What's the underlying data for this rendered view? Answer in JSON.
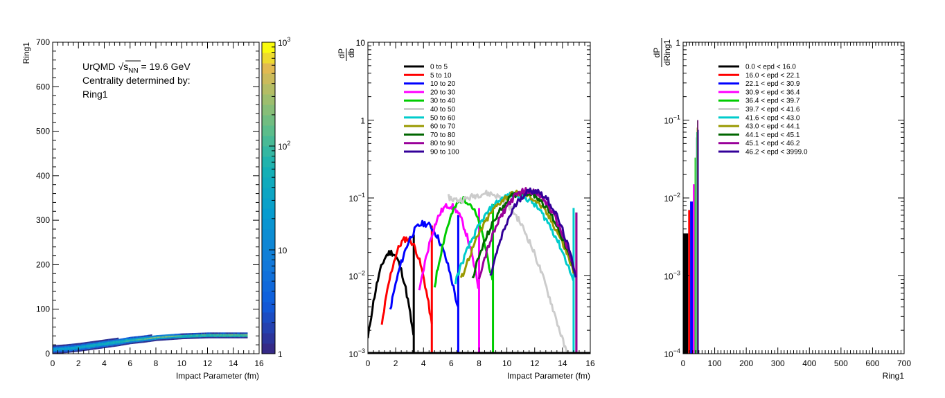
{
  "chart_data": [
    {
      "id": "panel1",
      "type": "heatmap",
      "ylabel": "Ring1",
      "xlabel": "Impact Parameter (fm)",
      "xlim": [
        0,
        16
      ],
      "ylim": [
        0,
        700
      ],
      "xticks": [
        "0",
        "2",
        "4",
        "6",
        "8",
        "10",
        "12",
        "14",
        "16"
      ],
      "yticks": [
        "0",
        "100",
        "200",
        "300",
        "400",
        "500",
        "600",
        "700"
      ],
      "annotation": {
        "line1_prefix": "UrQMD",
        "sqrt": "√",
        "s": "s",
        "sub": "NN",
        "line1_suffix": " = 19.6 GeV",
        "line2": "Centrality determined by:",
        "line3": "Ring1"
      },
      "colorbar": {
        "log": true,
        "range": [
          1,
          1000
        ],
        "labels": [
          "1",
          "10",
          "10",
          "10"
        ],
        "sups": [
          "",
          "",
          "2",
          "3"
        ],
        "label_values": [
          1,
          10,
          100,
          1000
        ]
      },
      "band": {
        "b": [
          0,
          1,
          2,
          3,
          4,
          5,
          6,
          7,
          8,
          9,
          10,
          11,
          12,
          13,
          14,
          15
        ],
        "mean": [
          8,
          10,
          13,
          17,
          21,
          25,
          29,
          32,
          35,
          37,
          38,
          39,
          40,
          40,
          40,
          40
        ],
        "halfwidth": [
          8,
          8,
          8,
          8,
          8,
          8,
          7,
          7,
          6,
          6,
          5,
          5,
          5,
          5,
          5,
          5
        ]
      }
    },
    {
      "id": "panel2",
      "type": "line",
      "ylabel_num": "dP",
      "ylabel_den": "db",
      "xlabel": "Impact Parameter (fm)",
      "xlim": [
        0,
        16
      ],
      "ylim": [
        0.001,
        10
      ],
      "log_y": true,
      "xticks": [
        "0",
        "2",
        "4",
        "6",
        "8",
        "10",
        "12",
        "14",
        "16"
      ],
      "yticks": [
        {
          "base": "10",
          "sup": "−3",
          "value": 0.001
        },
        {
          "base": "10",
          "sup": "−2",
          "value": 0.01
        },
        {
          "base": "10",
          "sup": "−1",
          "value": 0.1
        },
        {
          "base": "1",
          "sup": "",
          "value": 1
        },
        {
          "base": "10",
          "sup": "",
          "value": 10
        }
      ],
      "legend_position": "top-left",
      "series": [
        {
          "name": "0 to 5",
          "color": "#000000",
          "b_range": [
            0,
            3.3
          ],
          "peak": 0.02
        },
        {
          "name": "5 to 10",
          "color": "#ff0000",
          "b_range": [
            1.0,
            4.6
          ],
          "peak": 0.03
        },
        {
          "name": "10 to 20",
          "color": "#0000ff",
          "b_range": [
            1.6,
            6.5
          ],
          "peak": 0.047
        },
        {
          "name": "20 to 30",
          "color": "#ff00ff",
          "b_range": [
            3.7,
            8.0
          ],
          "peak": 0.08
        },
        {
          "name": "30 to 40",
          "color": "#00cc00",
          "b_range": [
            4.8,
            9.0
          ],
          "peak": 0.095
        },
        {
          "name": "40 to 50",
          "color": "#cccccc",
          "b_range": [
            5.8,
            15.0
          ],
          "peak": 0.1
        },
        {
          "name": "50 to 60",
          "color": "#00cccc",
          "b_range": [
            6.3,
            14.8
          ],
          "peak": 0.11
        },
        {
          "name": "60 to 70",
          "color": "#999900",
          "b_range": [
            6.7,
            15.0
          ],
          "peak": 0.115
        },
        {
          "name": "70 to 80",
          "color": "#006600",
          "b_range": [
            7.5,
            15.0
          ],
          "peak": 0.12
        },
        {
          "name": "80 to 90",
          "color": "#990099",
          "b_range": [
            8.0,
            15.0
          ],
          "peak": 0.125
        },
        {
          "name": "90 to 100",
          "color": "#330099",
          "b_range": [
            8.8,
            15.0
          ],
          "peak": 0.125
        }
      ]
    },
    {
      "id": "panel3",
      "type": "line",
      "ylabel_num": "dP",
      "ylabel_den": "dRing1",
      "xlabel": "Ring1",
      "xlim": [
        0,
        700
      ],
      "ylim": [
        0.0001,
        1
      ],
      "log_y": true,
      "xticks": [
        "0",
        "100",
        "200",
        "300",
        "400",
        "500",
        "600",
        "700"
      ],
      "yticks": [
        {
          "base": "10",
          "sup": "−4",
          "value": 0.0001
        },
        {
          "base": "10",
          "sup": "−3",
          "value": 0.001
        },
        {
          "base": "10",
          "sup": "−2",
          "value": 0.01
        },
        {
          "base": "10",
          "sup": "−1",
          "value": 0.1
        },
        {
          "base": "1",
          "sup": "",
          "value": 1
        }
      ],
      "legend_position": "top-left",
      "series": [
        {
          "name": "0.0 < epd < 16.0",
          "color": "#000000",
          "x_range": [
            0,
            16
          ],
          "peak": 0.0035
        },
        {
          "name": "16.0 < epd < 22.1",
          "color": "#ff0000",
          "x_range": [
            16,
            22.1
          ],
          "peak": 0.007
        },
        {
          "name": "22.1 < epd < 30.9",
          "color": "#0000ff",
          "x_range": [
            22.1,
            30.9
          ],
          "peak": 0.009
        },
        {
          "name": "30.9 < epd < 36.4",
          "color": "#ff00ff",
          "x_range": [
            30.9,
            36.4
          ],
          "peak": 0.015
        },
        {
          "name": "36.4 < epd < 39.7",
          "color": "#00cc00",
          "x_range": [
            36.4,
            39.7
          ],
          "peak": 0.033
        },
        {
          "name": "39.7 < epd < 41.6",
          "color": "#cccccc",
          "x_range": [
            39.7,
            41.6
          ],
          "peak": 0.06
        },
        {
          "name": "41.6 < epd < 43.0",
          "color": "#00cccc",
          "x_range": [
            41.6,
            43.0
          ],
          "peak": 0.07
        },
        {
          "name": "43.0 < epd < 44.1",
          "color": "#999900",
          "x_range": [
            43.0,
            44.1
          ],
          "peak": 0.08
        },
        {
          "name": "44.1 < epd < 45.1",
          "color": "#006600",
          "x_range": [
            44.1,
            45.1
          ],
          "peak": 0.1
        },
        {
          "name": "45.1 < epd < 46.2",
          "color": "#990099",
          "x_range": [
            45.1,
            46.2
          ],
          "peak": 0.1
        },
        {
          "name": "46.2 < epd < 3999.0",
          "color": "#330099",
          "x_range": [
            46.2,
            48
          ],
          "peak": 0.075
        }
      ]
    }
  ]
}
